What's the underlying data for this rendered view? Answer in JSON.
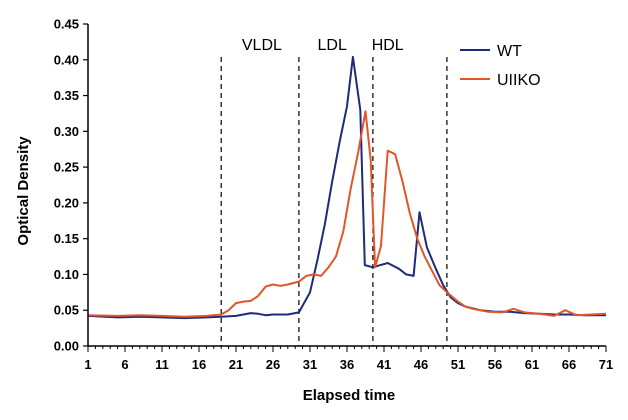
{
  "chart_data": {
    "type": "line",
    "title": "",
    "xlabel": "Elapsed time",
    "ylabel": "Optical Density",
    "xlim": [
      1,
      71
    ],
    "ylim": [
      0,
      0.45
    ],
    "x_ticks": [
      1,
      6,
      11,
      16,
      21,
      26,
      31,
      36,
      41,
      46,
      51,
      56,
      61,
      66,
      71
    ],
    "y_ticks": [
      "0.00",
      "0.05",
      "0.10",
      "0.15",
      "0.20",
      "0.25",
      "0.30",
      "0.35",
      "0.40",
      "0.45"
    ],
    "grid": false,
    "legend_position": "top-right",
    "region_boundaries": [
      19,
      29.5,
      39.5,
      49.5
    ],
    "region_labels": [
      {
        "label": "VLDL",
        "x": 24.5
      },
      {
        "label": "LDL",
        "x": 34
      },
      {
        "label": "HDL",
        "x": 41.5
      }
    ],
    "series": [
      {
        "name": "WT",
        "color": "#1f2a7a",
        "points": [
          [
            1,
            0.042
          ],
          [
            5,
            0.04
          ],
          [
            8,
            0.041
          ],
          [
            11,
            0.04
          ],
          [
            14,
            0.039
          ],
          [
            17,
            0.04
          ],
          [
            19,
            0.041
          ],
          [
            21,
            0.042
          ],
          [
            22,
            0.044
          ],
          [
            23,
            0.046
          ],
          [
            24,
            0.045
          ],
          [
            25,
            0.043
          ],
          [
            26,
            0.044
          ],
          [
            28,
            0.044
          ],
          [
            29.5,
            0.047
          ],
          [
            31,
            0.075
          ],
          [
            32,
            0.12
          ],
          [
            33,
            0.17
          ],
          [
            34,
            0.23
          ],
          [
            35,
            0.285
          ],
          [
            36,
            0.335
          ],
          [
            36.8,
            0.404
          ],
          [
            37.8,
            0.33
          ],
          [
            38.4,
            0.113
          ],
          [
            39.5,
            0.11
          ],
          [
            40.5,
            0.113
          ],
          [
            41.5,
            0.116
          ],
          [
            43,
            0.108
          ],
          [
            44,
            0.1
          ],
          [
            45,
            0.098
          ],
          [
            45.8,
            0.187
          ],
          [
            46.8,
            0.138
          ],
          [
            48,
            0.108
          ],
          [
            49,
            0.085
          ],
          [
            50,
            0.068
          ],
          [
            51,
            0.06
          ],
          [
            52,
            0.055
          ],
          [
            54,
            0.05
          ],
          [
            56,
            0.048
          ],
          [
            58,
            0.048
          ],
          [
            60,
            0.046
          ],
          [
            62,
            0.045
          ],
          [
            64,
            0.044
          ],
          [
            66,
            0.044
          ],
          [
            68,
            0.043
          ],
          [
            71,
            0.043
          ]
        ]
      },
      {
        "name": "UIIKO",
        "color": "#e0572a",
        "points": [
          [
            1,
            0.043
          ],
          [
            5,
            0.042
          ],
          [
            8,
            0.043
          ],
          [
            11,
            0.042
          ],
          [
            14,
            0.041
          ],
          [
            17,
            0.042
          ],
          [
            19,
            0.044
          ],
          [
            20,
            0.05
          ],
          [
            21,
            0.06
          ],
          [
            22,
            0.062
          ],
          [
            23,
            0.063
          ],
          [
            24,
            0.07
          ],
          [
            25,
            0.083
          ],
          [
            26,
            0.086
          ],
          [
            27,
            0.084
          ],
          [
            28,
            0.086
          ],
          [
            29.5,
            0.09
          ],
          [
            30.5,
            0.098
          ],
          [
            31.5,
            0.1
          ],
          [
            32.5,
            0.098
          ],
          [
            33.5,
            0.11
          ],
          [
            34.5,
            0.125
          ],
          [
            35.5,
            0.16
          ],
          [
            36.5,
            0.22
          ],
          [
            37.5,
            0.27
          ],
          [
            38.5,
            0.328
          ],
          [
            39.2,
            0.26
          ],
          [
            39.8,
            0.11
          ],
          [
            40.6,
            0.14
          ],
          [
            41.5,
            0.273
          ],
          [
            42.5,
            0.268
          ],
          [
            43.5,
            0.23
          ],
          [
            44.5,
            0.185
          ],
          [
            45.5,
            0.15
          ],
          [
            46.5,
            0.125
          ],
          [
            47.5,
            0.105
          ],
          [
            48.5,
            0.085
          ],
          [
            49.5,
            0.075
          ],
          [
            51,
            0.062
          ],
          [
            52,
            0.055
          ],
          [
            53,
            0.052
          ],
          [
            55,
            0.048
          ],
          [
            57,
            0.047
          ],
          [
            58.5,
            0.052
          ],
          [
            60,
            0.047
          ],
          [
            62,
            0.045
          ],
          [
            64,
            0.042
          ],
          [
            65.5,
            0.05
          ],
          [
            67,
            0.043
          ],
          [
            69,
            0.044
          ],
          [
            71,
            0.045
          ]
        ]
      }
    ]
  }
}
